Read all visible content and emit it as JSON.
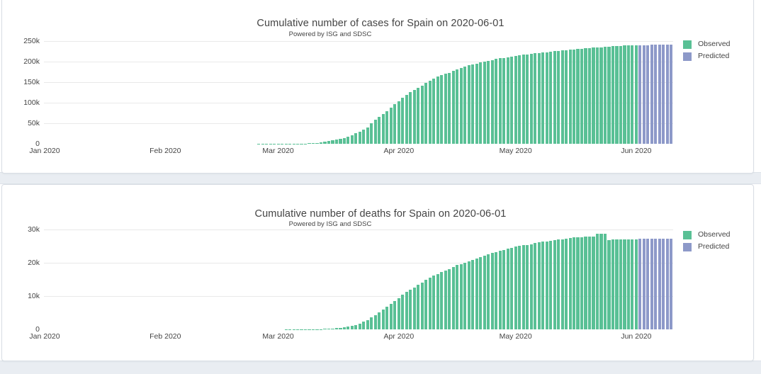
{
  "page": {
    "background_color": "#ffffff",
    "band_color": "#e9edf2",
    "card_border_color": "#d9dee5"
  },
  "chart_data": [
    {
      "type": "bar",
      "title": "Cumulative number of cases for Spain on 2020-06-01",
      "subtitle": "Powered by ISG and SDSC",
      "xlabel": "",
      "ylabel": "",
      "ylim": [
        0,
        250000
      ],
      "grid": true,
      "legend_position": "right",
      "y_ticks": [
        {
          "label": "0",
          "value": 0
        },
        {
          "label": "50k",
          "value": 50000
        },
        {
          "label": "100k",
          "value": 100000
        },
        {
          "label": "150k",
          "value": 150000
        },
        {
          "label": "200k",
          "value": 200000
        },
        {
          "label": "250k",
          "value": 250000
        }
      ],
      "x_ticks": [
        {
          "label": "Jan 2020",
          "date": "2020-01-01"
        },
        {
          "label": "Feb 2020",
          "date": "2020-02-01"
        },
        {
          "label": "Mar 2020",
          "date": "2020-03-01"
        },
        {
          "label": "Apr 2020",
          "date": "2020-04-01"
        },
        {
          "label": "May 2020",
          "date": "2020-05-01"
        },
        {
          "label": "Jun 2020",
          "date": "2020-06-01"
        }
      ],
      "legend": [
        {
          "label": "Observed",
          "color": "#59c095"
        },
        {
          "label": "Predicted",
          "color": "#8d99c9"
        }
      ],
      "series": [
        {
          "name": "Observed",
          "color": "#59c095",
          "start_date": "2020-02-25",
          "values": [
            6,
            13,
            15,
            32,
            45,
            84,
            120,
            165,
            222,
            259,
            400,
            500,
            673,
            1073,
            1695,
            2277,
            3146,
            5232,
            6391,
            7798,
            9942,
            11748,
            13910,
            17963,
            20410,
            25374,
            28768,
            35136,
            39885,
            49515,
            57786,
            65719,
            73235,
            80110,
            87956,
            95923,
            104118,
            112065,
            119199,
            126168,
            131646,
            136675,
            141942,
            148220,
            153222,
            158273,
            163027,
            166831,
            170099,
            172541,
            177644,
            181200,
            184600,
            187700,
            190600,
            193200,
            195700,
            198100,
            200210,
            202400,
            204300,
            206100,
            207800,
            209400,
            211000,
            212500,
            214000,
            215400,
            216700,
            217900,
            219000,
            220100,
            221200,
            222300,
            223300,
            224300,
            225200,
            226100,
            227000,
            227900,
            228800,
            229700,
            230500,
            231300,
            232100,
            232900,
            233700,
            234500,
            235300,
            236000,
            236700,
            237300,
            237900,
            238400,
            238900,
            239300,
            239500,
            239638
          ]
        },
        {
          "name": "Predicted",
          "color": "#8d99c9",
          "start_date": "2020-06-02",
          "values": [
            239900,
            240200,
            240450,
            240700,
            240900,
            241100,
            241300,
            241450,
            241600
          ]
        }
      ]
    },
    {
      "type": "bar",
      "title": "Cumulative number of deaths for Spain on 2020-06-01",
      "subtitle": "Powered by ISG and SDSC",
      "xlabel": "",
      "ylabel": "",
      "ylim": [
        0,
        30000
      ],
      "grid": true,
      "legend_position": "right",
      "y_ticks": [
        {
          "label": "0",
          "value": 0
        },
        {
          "label": "10k",
          "value": 10000
        },
        {
          "label": "20k",
          "value": 20000
        },
        {
          "label": "30k",
          "value": 30000
        }
      ],
      "x_ticks": [
        {
          "label": "Jan 2020",
          "date": "2020-01-01"
        },
        {
          "label": "Feb 2020",
          "date": "2020-02-01"
        },
        {
          "label": "Mar 2020",
          "date": "2020-03-01"
        },
        {
          "label": "Apr 2020",
          "date": "2020-04-01"
        },
        {
          "label": "May 2020",
          "date": "2020-05-01"
        },
        {
          "label": "Jun 2020",
          "date": "2020-06-01"
        }
      ],
      "legend": [
        {
          "label": "Observed",
          "color": "#59c095"
        },
        {
          "label": "Predicted",
          "color": "#8d99c9"
        }
      ],
      "series": [
        {
          "name": "Observed",
          "color": "#59c095",
          "start_date": "2020-03-03",
          "values": [
            1,
            2,
            3,
            5,
            10,
            17,
            28,
            35,
            54,
            55,
            133,
            195,
            289,
            342,
            533,
            623,
            830,
            1043,
            1375,
            1772,
            2311,
            2808,
            3647,
            4365,
            5138,
            5982,
            6803,
            7716,
            8464,
            9387,
            10348,
            11198,
            11947,
            12641,
            13341,
            14045,
            14792,
            15447,
            16081,
            16606,
            17209,
            17756,
            18056,
            18708,
            19315,
            19478,
            20043,
            20453,
            20852,
            21282,
            21717,
            22157,
            22524,
            22902,
            23190,
            23521,
            23822,
            24275,
            24543,
            24824,
            25100,
            25264,
            25428,
            25613,
            25857,
            26070,
            26299,
            26478,
            26621,
            26744,
            26920,
            27104,
            27321,
            27459,
            27563,
            27650,
            27709,
            27778,
            27888,
            27940,
            28628,
            28678,
            28752,
            26834,
            27117,
            27118,
            27119,
            27121,
            27125,
            27127,
            27127
          ]
        },
        {
          "name": "Predicted",
          "color": "#8d99c9",
          "start_date": "2020-06-02",
          "values": [
            27135,
            27148,
            27160,
            27172,
            27183,
            27194,
            27204,
            27214,
            27224
          ]
        }
      ]
    }
  ]
}
